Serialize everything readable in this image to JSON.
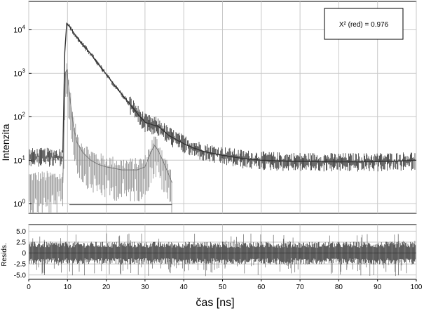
{
  "chart_data": [
    {
      "type": "line",
      "panel": "decay",
      "ylabel": "Intenzita",
      "yscale": "log",
      "ylim": [
        0.6,
        45000
      ],
      "xlim": [
        0,
        100
      ],
      "y_ticks": [
        {
          "base": "10",
          "exp": "0",
          "value": 1
        },
        {
          "base": "10",
          "exp": "1",
          "value": 10
        },
        {
          "base": "10",
          "exp": "2",
          "value": 100
        },
        {
          "base": "10",
          "exp": "3",
          "value": 1000
        },
        {
          "base": "10",
          "exp": "4",
          "value": 10000
        }
      ],
      "grid": true,
      "annotation": "X² (red) = 0.976",
      "annotation_position": "top-right",
      "series": [
        {
          "color": "#333333",
          "x": [
            8.8,
            9.3,
            9.8,
            10.5,
            12,
            14,
            16,
            18,
            20,
            22,
            24,
            26,
            28,
            30,
            32,
            33,
            34,
            36,
            38,
            40,
            42,
            45,
            50,
            55,
            60,
            65,
            70,
            75,
            80,
            85,
            90,
            95,
            100
          ],
          "y": [
            15,
            3000,
            14000,
            12000,
            7500,
            4500,
            2800,
            1600,
            950,
            550,
            330,
            200,
            120,
            75,
            65,
            62,
            55,
            38,
            30,
            24,
            20,
            16,
            13,
            11,
            10,
            9.6,
            9.4,
            9.3,
            9.2,
            9.2,
            9.3,
            9.5,
            10
          ]
        },
        {
          "color": "#7a7a7a",
          "x": [
            8.8,
            9.4,
            9.8,
            10.2,
            10.8,
            11.5,
            12.5,
            14,
            16,
            18,
            20,
            22,
            24,
            26,
            28,
            30,
            31.5,
            32.5,
            33.5,
            35,
            37
          ],
          "y": [
            3,
            1000,
            1200,
            600,
            200,
            60,
            25,
            15,
            10,
            8,
            7,
            6.5,
            6,
            6,
            6,
            7,
            15,
            22,
            16,
            8,
            3
          ]
        }
      ]
    },
    {
      "type": "line",
      "panel": "residuals",
      "ylabel": "Resids.",
      "xlabel": "čas [ns]",
      "ylim": [
        -6,
        6.5
      ],
      "xlim": [
        0,
        100
      ],
      "y_tick_labels": [
        "5.0",
        "2.5",
        "0",
        "-2.5",
        "-5.0"
      ],
      "y_tick_values": [
        5,
        2.5,
        0,
        -2.5,
        -5
      ],
      "x_tick_labels": [
        "0",
        "10",
        "20",
        "30",
        "40",
        "50",
        "60",
        "70",
        "80",
        "90",
        "100"
      ],
      "x_tick_values": [
        0,
        10,
        20,
        30,
        40,
        50,
        60,
        70,
        80,
        90,
        100
      ],
      "grid": true,
      "series": [
        {
          "color": "#333333",
          "x": [
            0,
            100
          ],
          "y": [
            0,
            0
          ]
        }
      ]
    }
  ]
}
